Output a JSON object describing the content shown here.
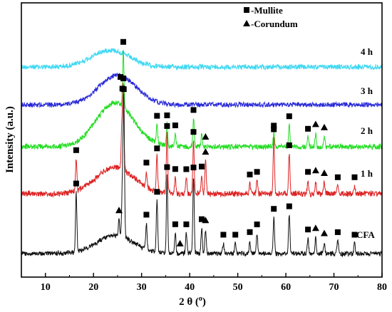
{
  "chart_data": {
    "type": "line",
    "title": "",
    "xlabel": "2 θ (°)",
    "xlabel_main": "2 θ",
    "xlabel_unit": "o",
    "ylabel": "Intensity (a.u.)",
    "xlim": [
      5,
      80
    ],
    "x_ticks": [
      10,
      20,
      30,
      40,
      50,
      60,
      70,
      80
    ],
    "y_ticks": "none",
    "grid": false,
    "legend_placement": "top-right",
    "legend": [
      {
        "marker": "square",
        "label": "-Mullite"
      },
      {
        "marker": "triangle",
        "label": "-Corundum"
      }
    ],
    "series": [
      {
        "name": "4 h",
        "color": "#3fd8f2",
        "profile": "amorphous",
        "hump_center": 23.5,
        "hump_height": 0.6,
        "hump_width": 5.5,
        "peaks": [],
        "mullite_markers": [],
        "corundum_markers": []
      },
      {
        "name": "3 h",
        "color": "#2828d8",
        "profile": "amorphous",
        "hump_center": 25,
        "hump_height": 0.85,
        "hump_width": 5.5,
        "peaks": [],
        "mullite_markers": [],
        "corundum_markers": []
      },
      {
        "name": "2 h",
        "color": "#22dd22",
        "profile": "semi-crystalline",
        "hump_center": 24.5,
        "hump_height": 0.7,
        "hump_width": 5.5,
        "peaks": [
          [
            26.2,
            0.9
          ],
          [
            33.2,
            0.3
          ],
          [
            35.3,
            0.35
          ],
          [
            37.0,
            0.2
          ],
          [
            40.8,
            0.45
          ],
          [
            42.5,
            0.2
          ],
          [
            57.5,
            0.2
          ],
          [
            60.7,
            0.35
          ],
          [
            64.6,
            0.15
          ],
          [
            66.2,
            0.2
          ],
          [
            68.0,
            0.15
          ]
        ],
        "mullite_markers": [
          26.2,
          33.2,
          35.3,
          37.0,
          40.8,
          57.5,
          60.7,
          64.6
        ],
        "corundum_markers": [
          43.3,
          66.2,
          68.0
        ]
      },
      {
        "name": "1 h",
        "color": "#dd2222",
        "profile": "semi-crystalline",
        "hump_center": 24.5,
        "hump_height": 0.5,
        "hump_width": 5.5,
        "peaks": [
          [
            16.4,
            0.6
          ],
          [
            25.9,
            0.8
          ],
          [
            26.2,
            1.55
          ],
          [
            31.0,
            0.3
          ],
          [
            33.2,
            0.65
          ],
          [
            35.3,
            1.1
          ],
          [
            37.0,
            0.3
          ],
          [
            39.3,
            0.3
          ],
          [
            40.8,
            1.0
          ],
          [
            42.5,
            0.35
          ],
          [
            43.3,
            0.6
          ],
          [
            52.5,
            0.2
          ],
          [
            54.0,
            0.25
          ],
          [
            57.5,
            1.05
          ],
          [
            60.7,
            0.75
          ],
          [
            64.6,
            0.25
          ],
          [
            66.2,
            0.25
          ],
          [
            68.0,
            0.2
          ],
          [
            70.8,
            0.15
          ],
          [
            74.3,
            0.15
          ]
        ],
        "mullite_markers": [
          16.4,
          25.6,
          26.2,
          31.0,
          33.2,
          35.3,
          37.0,
          39.3,
          40.8,
          42.5,
          52.5,
          54.0,
          57.5,
          60.7,
          64.6,
          70.8,
          74.3
        ],
        "corundum_markers": [
          43.3,
          66.2,
          68.0
        ]
      },
      {
        "name": "CFA",
        "color": "#111111",
        "profile": "crystalline",
        "hump_center": 24.5,
        "hump_height": 0.35,
        "hump_width": 5.5,
        "peaks": [
          [
            16.4,
            1.15
          ],
          [
            25.3,
            0.3
          ],
          [
            26.0,
            1.0
          ],
          [
            26.3,
            2.7
          ],
          [
            31.0,
            0.5
          ],
          [
            33.2,
            1.0
          ],
          [
            35.3,
            1.5
          ],
          [
            37.0,
            0.4
          ],
          [
            39.3,
            0.4
          ],
          [
            40.8,
            1.5
          ],
          [
            42.5,
            0.5
          ],
          [
            43.3,
            0.45
          ],
          [
            47.0,
            0.2
          ],
          [
            49.5,
            0.2
          ],
          [
            52.5,
            0.25
          ],
          [
            54.0,
            0.4
          ],
          [
            57.5,
            0.7
          ],
          [
            60.7,
            0.75
          ],
          [
            64.6,
            0.3
          ],
          [
            66.2,
            0.3
          ],
          [
            68.0,
            0.2
          ],
          [
            70.8,
            0.25
          ],
          [
            74.3,
            0.2
          ]
        ],
        "mullite_markers": [
          16.4,
          26.0,
          26.3,
          31.0,
          33.2,
          35.3,
          37.0,
          39.3,
          40.8,
          42.5,
          47.0,
          49.5,
          52.5,
          54.0,
          57.5,
          60.7,
          64.6,
          70.8,
          74.3
        ],
        "corundum_markers": [
          25.3,
          38.0,
          43.3,
          66.2,
          68.0
        ]
      }
    ]
  }
}
